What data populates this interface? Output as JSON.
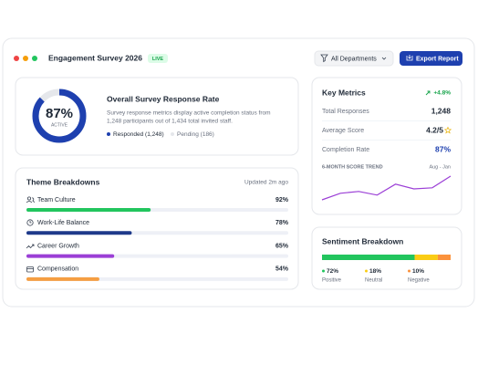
{
  "header": {
    "title": "Engagement Survey 2026",
    "badge": "LIVE",
    "filter": "All Departments",
    "export": "Export Report"
  },
  "response": {
    "value": 87,
    "value_label": "87%",
    "caption": "ACTIVE",
    "title": "Overall Survey Response Rate",
    "description": [
      "Survey response metrics display active completion status from",
      "1,248 participants out of 1,434 total invited staff."
    ],
    "legend": [
      "Responded (1,248)",
      "Pending (186)"
    ]
  },
  "themes": {
    "title": "Theme Breakdowns",
    "updated": "Updated 2m ago",
    "items": [
      {
        "name": "Team Culture",
        "value": 92,
        "value_label": "92%",
        "color": "#22c55e"
      },
      {
        "name": "Work-Life Balance",
        "value": 78,
        "value_label": "78%",
        "color": "#1e3a8a"
      },
      {
        "name": "Career Growth",
        "value": 65,
        "value_label": "65%",
        "color": "#9b3fd6"
      },
      {
        "name": "Compensation",
        "value": 54,
        "value_label": "54%",
        "color": "#f59e42"
      }
    ]
  },
  "key_metrics": {
    "title": "Key Metrics",
    "change": "+4.8%",
    "rows": [
      {
        "label": "Total Responses",
        "value": "1,248"
      },
      {
        "label": "Average Score",
        "value": "4.2/5"
      },
      {
        "label": "Completion Rate",
        "value": "87%"
      }
    ],
    "trend_title": "6-MONTH SCORE TREND",
    "trend_range": "Aug - Jan",
    "trend": {
      "values": [
        3.6,
        3.78,
        3.83,
        3.73,
        4.03,
        3.9,
        3.93,
        4.25
      ],
      "color": "#9b3fd6"
    }
  },
  "sentiment": {
    "title": "Sentiment Breakdown",
    "items": [
      {
        "name": "Positive",
        "value": 72,
        "value_label": "72%",
        "color": "#22c55e"
      },
      {
        "name": "Neutral",
        "value": 18,
        "value_label": "18%",
        "color": "#facc15"
      },
      {
        "name": "Negative",
        "value": 10,
        "value_label": "10%",
        "color": "#fb923c"
      }
    ]
  }
}
